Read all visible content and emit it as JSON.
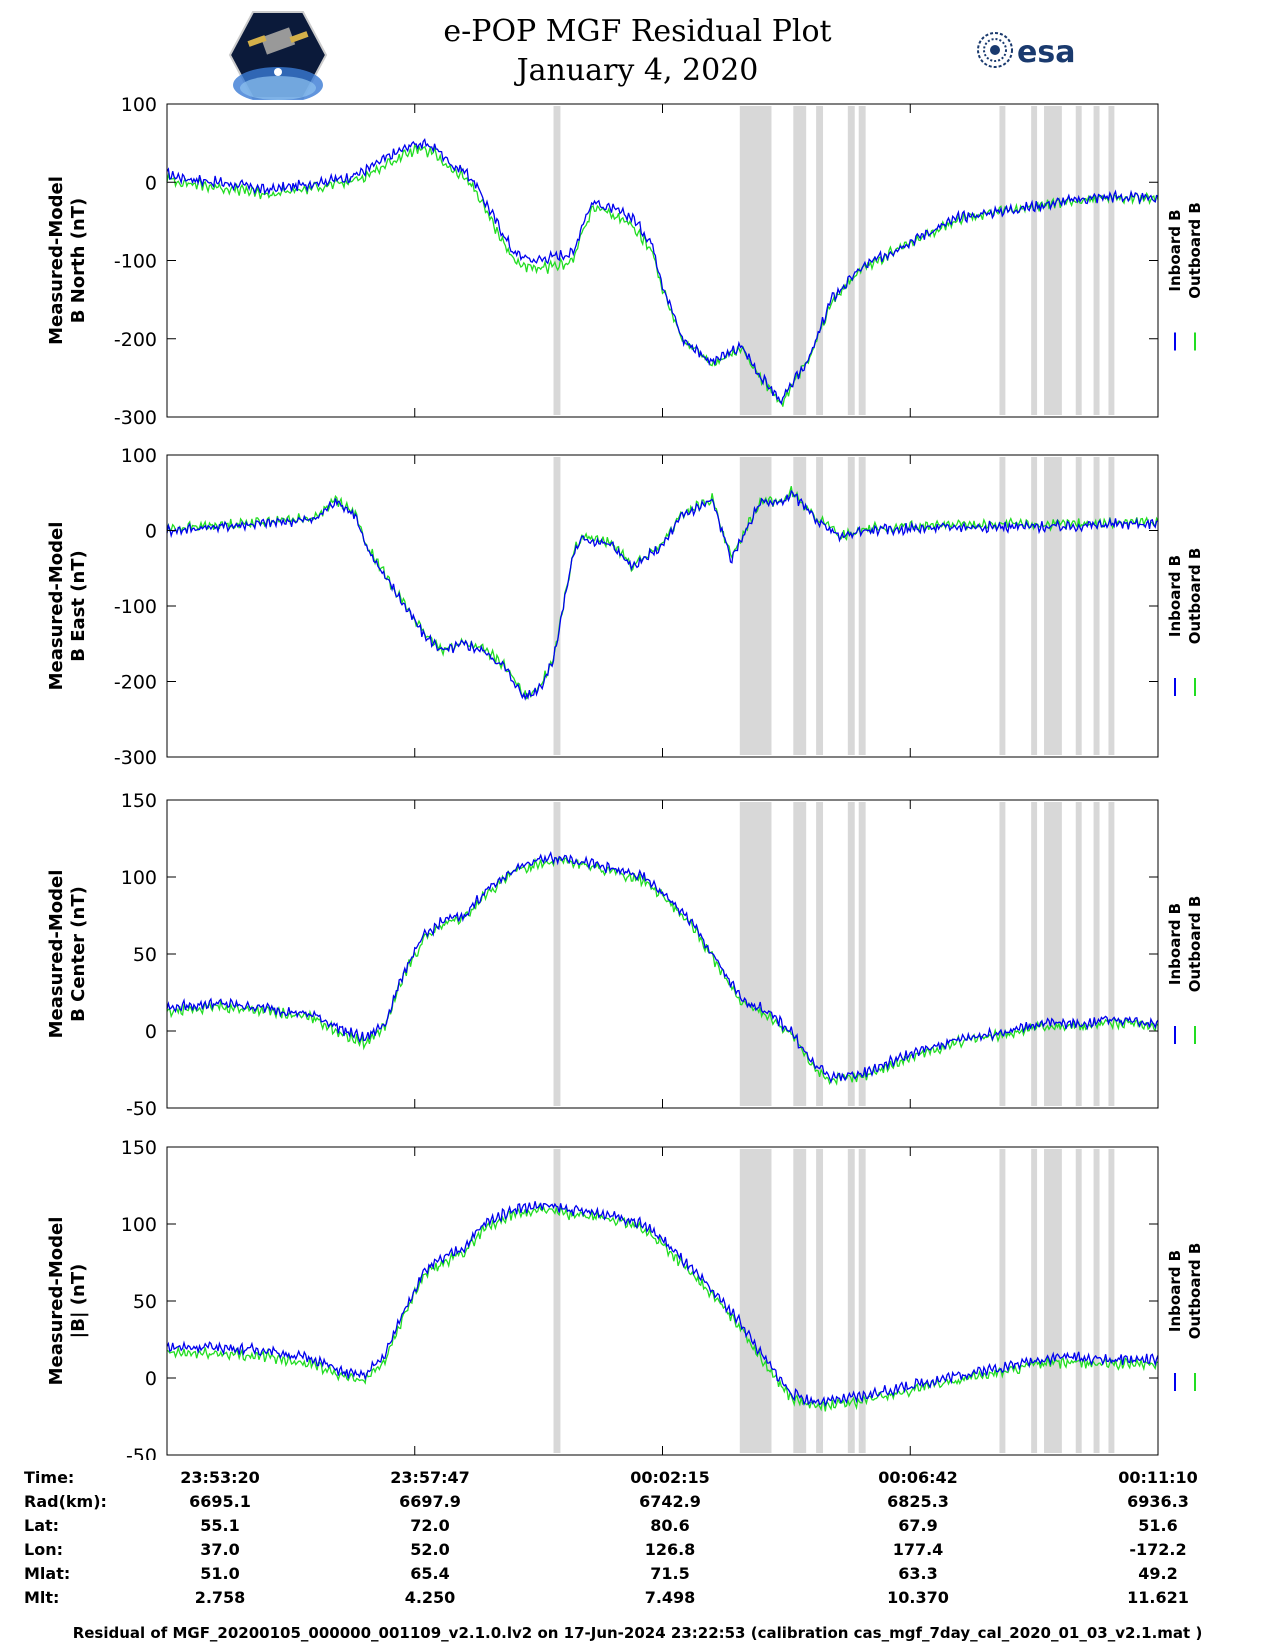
{
  "header": {
    "title_line1": "e-POP MGF Residual Plot",
    "title_line2": "January 4, 2020",
    "logo_left": "cassiope-mission-logo",
    "logo_right_text": "esa"
  },
  "chart_data": {
    "type": "line",
    "x_tick_labels": [
      "23:53:20",
      "23:57:47",
      "00:02:15",
      "00:06:42",
      "00:11:10"
    ],
    "shaded_intervals_fraction_of_time": [
      [
        0.39,
        0.397
      ],
      [
        0.578,
        0.61
      ],
      [
        0.632,
        0.645
      ],
      [
        0.655,
        0.662
      ],
      [
        0.687,
        0.694
      ],
      [
        0.698,
        0.705
      ],
      [
        0.84,
        0.846
      ],
      [
        0.872,
        0.878
      ],
      [
        0.885,
        0.903
      ],
      [
        0.917,
        0.923
      ],
      [
        0.935,
        0.941
      ],
      [
        0.95,
        0.956
      ]
    ],
    "series_colors": {
      "Inboard B": "#0000ee",
      "Outboard B": "#22dd22"
    },
    "panels": [
      {
        "ylabel_line1": "Measured-Model",
        "ylabel_line2": "B North (nT)",
        "ylim": [
          -300,
          100
        ],
        "yticks": [
          100,
          0,
          -100,
          -200,
          -300
        ],
        "legend": [
          "Inboard B",
          "Outboard B"
        ],
        "series": [
          {
            "name": "Inboard B",
            "x": [
              0,
              0.02,
              0.05,
              0.08,
              0.1,
              0.13,
              0.15,
              0.18,
              0.2,
              0.22,
              0.25,
              0.27,
              0.29,
              0.3,
              0.31,
              0.33,
              0.35,
              0.37,
              0.39,
              0.41,
              0.42,
              0.43,
              0.45,
              0.47,
              0.49,
              0.5,
              0.52,
              0.55,
              0.58,
              0.6,
              0.62,
              0.65,
              0.67,
              0.7,
              0.75,
              0.8,
              0.85,
              0.88,
              0.9,
              0.92,
              0.95,
              0.98,
              1.0
            ],
            "y": [
              10,
              5,
              0,
              -5,
              -10,
              -5,
              0,
              5,
              15,
              30,
              50,
              45,
              20,
              15,
              0,
              -45,
              -90,
              -100,
              -95,
              -90,
              -50,
              -25,
              -35,
              -45,
              -80,
              -130,
              -200,
              -230,
              -210,
              -250,
              -280,
              -220,
              -150,
              -110,
              -75,
              -45,
              -35,
              -30,
              -25,
              -22,
              -18,
              -20,
              -20
            ]
          },
          {
            "name": "Outboard B",
            "x": [
              0,
              0.02,
              0.05,
              0.08,
              0.1,
              0.13,
              0.15,
              0.18,
              0.2,
              0.22,
              0.25,
              0.27,
              0.29,
              0.3,
              0.31,
              0.33,
              0.35,
              0.37,
              0.39,
              0.41,
              0.42,
              0.43,
              0.45,
              0.47,
              0.49,
              0.5,
              0.52,
              0.55,
              0.58,
              0.6,
              0.62,
              0.65,
              0.67,
              0.7,
              0.75,
              0.8,
              0.85,
              0.88,
              0.9,
              0.92,
              0.95,
              0.98,
              1.0
            ],
            "y": [
              4,
              -1,
              -6,
              -11,
              -16,
              -11,
              -6,
              -1,
              8,
              22,
              42,
              37,
              12,
              7,
              -8,
              -55,
              -100,
              -112,
              -108,
              -100,
              -60,
              -33,
              -42,
              -55,
              -90,
              -135,
              -202,
              -232,
              -212,
              -252,
              -282,
              -222,
              -152,
              -112,
              -77,
              -46,
              -36,
              -31,
              -26,
              -23,
              -19,
              -21,
              -21
            ]
          }
        ]
      },
      {
        "ylabel_line1": "Measured-Model",
        "ylabel_line2": "B East (nT)",
        "ylim": [
          -300,
          100
        ],
        "yticks": [
          100,
          0,
          -100,
          -200,
          -300
        ],
        "legend": [
          "Inboard B",
          "Outboard B"
        ],
        "series": [
          {
            "name": "Inboard B",
            "x": [
              0,
              0.05,
              0.1,
              0.15,
              0.17,
              0.19,
              0.2,
              0.22,
              0.24,
              0.26,
              0.28,
              0.3,
              0.32,
              0.34,
              0.36,
              0.37,
              0.38,
              0.39,
              0.4,
              0.41,
              0.42,
              0.45,
              0.47,
              0.5,
              0.52,
              0.55,
              0.57,
              0.58,
              0.6,
              0.62,
              0.63,
              0.65,
              0.67,
              0.68,
              0.7,
              0.8,
              0.85,
              0.88,
              0.9,
              0.95,
              1.0
            ],
            "y": [
              0,
              5,
              10,
              15,
              40,
              20,
              -20,
              -60,
              -100,
              -140,
              -160,
              -150,
              -160,
              -180,
              -220,
              -215,
              -200,
              -170,
              -100,
              -30,
              -10,
              -20,
              -50,
              -20,
              20,
              40,
              -40,
              -10,
              40,
              35,
              50,
              20,
              0,
              -10,
              0,
              5,
              5,
              5,
              5,
              8,
              10
            ]
          },
          {
            "name": "Outboard B",
            "x": [
              0,
              0.05,
              0.1,
              0.15,
              0.17,
              0.19,
              0.2,
              0.22,
              0.24,
              0.26,
              0.28,
              0.3,
              0.32,
              0.34,
              0.36,
              0.37,
              0.38,
              0.39,
              0.4,
              0.41,
              0.42,
              0.45,
              0.47,
              0.5,
              0.52,
              0.55,
              0.57,
              0.58,
              0.6,
              0.62,
              0.63,
              0.65,
              0.67,
              0.68,
              0.7,
              0.8,
              0.85,
              0.88,
              0.9,
              0.95,
              1.0
            ],
            "y": [
              2,
              7,
              12,
              17,
              42,
              22,
              -18,
              -58,
              -98,
              -138,
              -158,
              -148,
              -158,
              -178,
              -218,
              -213,
              -198,
              -168,
              -98,
              -28,
              -8,
              -18,
              -48,
              -18,
              22,
              42,
              -38,
              -8,
              42,
              37,
              52,
              22,
              2,
              -8,
              2,
              8,
              8,
              8,
              8,
              10,
              12
            ]
          }
        ]
      },
      {
        "ylabel_line1": "Measured-Model",
        "ylabel_line2": "B Center (nT)",
        "ylim": [
          -50,
          150
        ],
        "yticks": [
          150,
          100,
          50,
          0,
          -50
        ],
        "legend": [
          "Inboard B",
          "Outboard B"
        ],
        "series": [
          {
            "name": "Inboard B",
            "x": [
              0,
              0.05,
              0.1,
              0.15,
              0.18,
              0.2,
              0.22,
              0.24,
              0.26,
              0.28,
              0.3,
              0.32,
              0.35,
              0.38,
              0.4,
              0.42,
              0.45,
              0.48,
              0.5,
              0.53,
              0.56,
              0.58,
              0.6,
              0.63,
              0.65,
              0.67,
              0.7,
              0.75,
              0.8,
              0.85,
              0.88,
              0.9,
              0.93,
              0.95,
              1.0
            ],
            "y": [
              15,
              18,
              15,
              10,
              0,
              -5,
              5,
              40,
              62,
              72,
              75,
              90,
              105,
              112,
              113,
              110,
              105,
              100,
              90,
              70,
              40,
              20,
              15,
              0,
              -20,
              -30,
              -28,
              -15,
              -5,
              0,
              5,
              5,
              5,
              8,
              5
            ]
          },
          {
            "name": "Outboard B",
            "x": [
              0,
              0.05,
              0.1,
              0.15,
              0.18,
              0.2,
              0.22,
              0.24,
              0.26,
              0.28,
              0.3,
              0.32,
              0.35,
              0.38,
              0.4,
              0.42,
              0.45,
              0.48,
              0.5,
              0.53,
              0.56,
              0.58,
              0.6,
              0.63,
              0.65,
              0.67,
              0.7,
              0.75,
              0.8,
              0.85,
              0.88,
              0.9,
              0.93,
              0.95,
              1.0
            ],
            "y": [
              12,
              16,
              13,
              8,
              -3,
              -8,
              3,
              38,
              60,
              70,
              73,
              88,
              103,
              110,
              111,
              108,
              103,
              98,
              88,
              68,
              38,
              18,
              13,
              -2,
              -22,
              -32,
              -30,
              -17,
              -7,
              -2,
              3,
              3,
              3,
              6,
              3
            ]
          }
        ]
      },
      {
        "ylabel_line1": "Measured-Model",
        "ylabel_line2": "|B| (nT)",
        "ylim": [
          -50,
          150
        ],
        "yticks": [
          150,
          100,
          50,
          0,
          -50
        ],
        "legend": [
          "Inboard B",
          "Outboard B"
        ],
        "series": [
          {
            "name": "Inboard B",
            "x": [
              0,
              0.05,
              0.1,
              0.15,
              0.18,
              0.2,
              0.22,
              0.24,
              0.26,
              0.28,
              0.3,
              0.32,
              0.35,
              0.38,
              0.4,
              0.42,
              0.45,
              0.48,
              0.5,
              0.53,
              0.56,
              0.58,
              0.6,
              0.63,
              0.65,
              0.67,
              0.7,
              0.75,
              0.8,
              0.85,
              0.88,
              0.9,
              0.95,
              1.0
            ],
            "y": [
              20,
              20,
              18,
              12,
              3,
              2,
              15,
              45,
              70,
              78,
              85,
              100,
              110,
              112,
              110,
              108,
              106,
              100,
              90,
              70,
              50,
              35,
              15,
              -10,
              -15,
              -15,
              -12,
              -5,
              2,
              8,
              12,
              14,
              12,
              12
            ]
          },
          {
            "name": "Outboard B",
            "x": [
              0,
              0.05,
              0.1,
              0.15,
              0.18,
              0.2,
              0.22,
              0.24,
              0.26,
              0.28,
              0.3,
              0.32,
              0.35,
              0.38,
              0.4,
              0.42,
              0.45,
              0.48,
              0.5,
              0.53,
              0.56,
              0.58,
              0.6,
              0.63,
              0.65,
              0.67,
              0.7,
              0.75,
              0.8,
              0.85,
              0.88,
              0.9,
              0.95,
              1.0
            ],
            "y": [
              16,
              16,
              14,
              9,
              0,
              -1,
              12,
              42,
              67,
              75,
              82,
              97,
              107,
              109,
              107,
              105,
              103,
              97,
              87,
              67,
              47,
              32,
              12,
              -13,
              -18,
              -18,
              -15,
              -8,
              -1,
              5,
              9,
              10,
              9,
              9
            ]
          }
        ]
      }
    ]
  },
  "ephemeris": {
    "rows": [
      {
        "label": "Time:",
        "values": [
          "23:53:20",
          "23:57:47",
          "00:02:15",
          "00:06:42",
          "00:11:10"
        ]
      },
      {
        "label": "Rad(km):",
        "values": [
          "6695.1",
          "6697.9",
          "6742.9",
          "6825.3",
          "6936.3"
        ]
      },
      {
        "label": "Lat:",
        "values": [
          "55.1",
          "72.0",
          "80.6",
          "67.9",
          "51.6"
        ]
      },
      {
        "label": "Lon:",
        "values": [
          "37.0",
          "52.0",
          "126.8",
          "177.4",
          "-172.2"
        ]
      },
      {
        "label": "Mlat:",
        "values": [
          "51.0",
          "65.4",
          "71.5",
          "63.3",
          "49.2"
        ]
      },
      {
        "label": "Mlt:",
        "values": [
          "2.758",
          "4.250",
          "7.498",
          "10.370",
          "11.621"
        ]
      }
    ]
  },
  "footer": "Residual of MGF_20200105_000000_001109_v2.1.0.lv2 on 17-Jun-2024 23:22:53 (calibration cas_mgf_7day_cal_2020_01_03_v2.1.mat )"
}
